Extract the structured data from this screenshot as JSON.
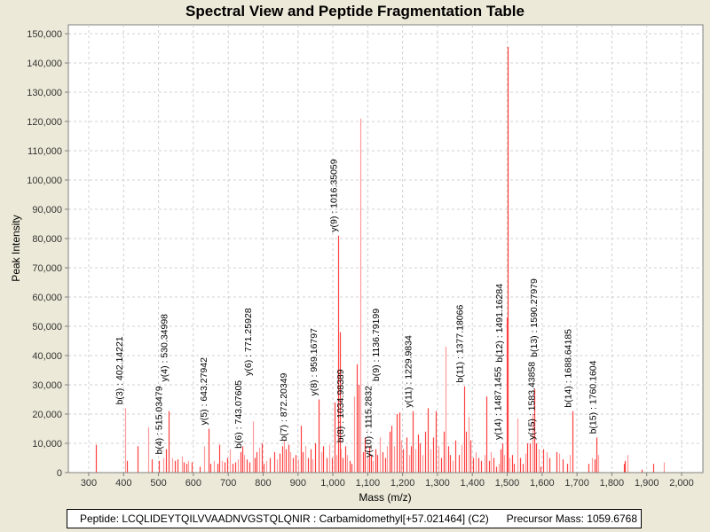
{
  "chart_data": {
    "type": "bar",
    "title": "Spectral View and Peptide Fragmentation Table",
    "xlabel": "Mass (m/z)",
    "ylabel": "Peak Intensity",
    "xlim": [
      250,
      2060
    ],
    "ylim": [
      0,
      152000
    ],
    "grid": true,
    "x_ticks": [
      "300",
      "400",
      "500",
      "600",
      "700",
      "800",
      "900",
      "1,000",
      "1,100",
      "1,200",
      "1,300",
      "1,400",
      "1,500",
      "1,600",
      "1,700",
      "1,800",
      "1,900",
      "2,000"
    ],
    "x_tick_values": [
      300,
      400,
      500,
      600,
      700,
      800,
      900,
      1000,
      1100,
      1200,
      1300,
      1400,
      1500,
      1600,
      1700,
      1800,
      1900,
      2000
    ],
    "y_ticks": [
      "0",
      "10,000",
      "20,000",
      "30,000",
      "40,000",
      "50,000",
      "60,000",
      "70,000",
      "80,000",
      "90,000",
      "100,000",
      "110,000",
      "120,000",
      "130,000",
      "140,000",
      "150,000"
    ],
    "y_tick_values": [
      0,
      10000,
      20000,
      30000,
      40000,
      50000,
      60000,
      70000,
      80000,
      90000,
      100000,
      110000,
      120000,
      130000,
      140000,
      150000
    ],
    "peaks": [
      [
        320,
        9500
      ],
      [
        404,
        22000
      ],
      [
        410,
        4000
      ],
      [
        440,
        9000
      ],
      [
        470,
        15500
      ],
      [
        480,
        4500
      ],
      [
        502,
        4000
      ],
      [
        515,
        5000
      ],
      [
        522,
        8000
      ],
      [
        530,
        21000
      ],
      [
        540,
        5000
      ],
      [
        548,
        4000
      ],
      [
        555,
        4500
      ],
      [
        566,
        5500
      ],
      [
        572,
        3500
      ],
      [
        580,
        3000
      ],
      [
        585,
        4000
      ],
      [
        594,
        3500
      ],
      [
        617,
        2000
      ],
      [
        631,
        9000
      ],
      [
        643,
        15000
      ],
      [
        649,
        3000
      ],
      [
        660,
        4000
      ],
      [
        670,
        3000
      ],
      [
        675,
        9500
      ],
      [
        681,
        4000
      ],
      [
        690,
        3500
      ],
      [
        696,
        5000
      ],
      [
        705,
        8000
      ],
      [
        713,
        3000
      ],
      [
        720,
        3500
      ],
      [
        728,
        4500
      ],
      [
        735,
        7000
      ],
      [
        741,
        9000
      ],
      [
        746,
        6000
      ],
      [
        752,
        4500
      ],
      [
        760,
        3500
      ],
      [
        771,
        17500
      ],
      [
        776,
        5000
      ],
      [
        782,
        7000
      ],
      [
        788,
        8500
      ],
      [
        795,
        10000
      ],
      [
        802,
        3000
      ],
      [
        810,
        4000
      ],
      [
        820,
        5000
      ],
      [
        832,
        7000
      ],
      [
        840,
        4500
      ],
      [
        848,
        6500
      ],
      [
        856,
        9000
      ],
      [
        860,
        11000
      ],
      [
        866,
        8000
      ],
      [
        872,
        9500
      ],
      [
        878,
        7000
      ],
      [
        885,
        5000
      ],
      [
        892,
        6000
      ],
      [
        900,
        4500
      ],
      [
        908,
        16000
      ],
      [
        914,
        7000
      ],
      [
        920,
        9000
      ],
      [
        928,
        5000
      ],
      [
        935,
        8000
      ],
      [
        942,
        4500
      ],
      [
        950,
        10000
      ],
      [
        959,
        25000
      ],
      [
        966,
        7000
      ],
      [
        973,
        9000
      ],
      [
        982,
        5000
      ],
      [
        990,
        9500
      ],
      [
        998,
        5000
      ],
      [
        1004,
        24000
      ],
      [
        1010,
        6000
      ],
      [
        1016,
        81000
      ],
      [
        1020,
        48000
      ],
      [
        1024,
        8000
      ],
      [
        1029,
        5000
      ],
      [
        1035,
        9000
      ],
      [
        1041,
        6000
      ],
      [
        1047,
        4000
      ],
      [
        1054,
        3000
      ],
      [
        1062,
        26000
      ],
      [
        1068,
        37000
      ],
      [
        1074,
        30000
      ],
      [
        1080,
        121000
      ],
      [
        1086,
        7000
      ],
      [
        1092,
        12000
      ],
      [
        1098,
        5000
      ],
      [
        1104,
        9000
      ],
      [
        1110,
        6000
      ],
      [
        1115,
        4000
      ],
      [
        1121,
        8000
      ],
      [
        1128,
        6000
      ],
      [
        1136,
        12000
      ],
      [
        1142,
        7000
      ],
      [
        1149,
        5000
      ],
      [
        1155,
        9000
      ],
      [
        1162,
        14000
      ],
      [
        1168,
        16000
      ],
      [
        1176,
        9000
      ],
      [
        1184,
        20000
      ],
      [
        1190,
        20500
      ],
      [
        1196,
        11000
      ],
      [
        1202,
        8000
      ],
      [
        1210,
        12000
      ],
      [
        1218,
        6000
      ],
      [
        1224,
        9000
      ],
      [
        1230,
        21000
      ],
      [
        1236,
        8000
      ],
      [
        1243,
        13000
      ],
      [
        1250,
        10000
      ],
      [
        1258,
        6000
      ],
      [
        1265,
        14000
      ],
      [
        1272,
        22000
      ],
      [
        1280,
        8000
      ],
      [
        1288,
        12000
      ],
      [
        1296,
        21000
      ],
      [
        1302,
        9000
      ],
      [
        1310,
        5000
      ],
      [
        1318,
        14000
      ],
      [
        1324,
        43000
      ],
      [
        1330,
        9000
      ],
      [
        1336,
        6000
      ],
      [
        1344,
        4000
      ],
      [
        1352,
        11000
      ],
      [
        1360,
        6000
      ],
      [
        1368,
        9500
      ],
      [
        1377,
        29500
      ],
      [
        1382,
        14000
      ],
      [
        1388,
        19000
      ],
      [
        1394,
        11000
      ],
      [
        1402,
        5000
      ],
      [
        1410,
        7000
      ],
      [
        1418,
        5000
      ],
      [
        1426,
        4000
      ],
      [
        1434,
        6000
      ],
      [
        1441,
        26000
      ],
      [
        1447,
        4000
      ],
      [
        1453,
        7000
      ],
      [
        1460,
        5000
      ],
      [
        1468,
        2000
      ],
      [
        1476,
        3000
      ],
      [
        1482,
        8000
      ],
      [
        1487,
        10000
      ],
      [
        1492,
        6000
      ],
      [
        1498,
        53000
      ],
      [
        1500,
        145500
      ],
      [
        1507,
        5000
      ],
      [
        1514,
        6000
      ],
      [
        1520,
        3000
      ],
      [
        1528,
        18500
      ],
      [
        1536,
        5000
      ],
      [
        1545,
        3000
      ],
      [
        1552,
        6500
      ],
      [
        1558,
        10000
      ],
      [
        1564,
        10000
      ],
      [
        1572,
        20000
      ],
      [
        1578,
        28500
      ],
      [
        1582,
        10000
      ],
      [
        1590,
        8000
      ],
      [
        1596,
        2000
      ],
      [
        1604,
        8000
      ],
      [
        1612,
        7000
      ],
      [
        1620,
        5000
      ],
      [
        1640,
        7000
      ],
      [
        1650,
        6500
      ],
      [
        1660,
        4500
      ],
      [
        1672,
        3000
      ],
      [
        1680,
        6000
      ],
      [
        1688,
        21000
      ],
      [
        1734,
        3000
      ],
      [
        1742,
        5000
      ],
      [
        1750,
        4500
      ],
      [
        1755,
        12000
      ],
      [
        1760,
        6000
      ],
      [
        1834,
        3000
      ],
      [
        1836,
        4000
      ],
      [
        1844,
        6000
      ],
      [
        1886,
        1000
      ],
      [
        1918,
        3000
      ],
      [
        1948,
        3500
      ]
    ],
    "annotations": [
      {
        "label": "b(3) : 402.14221",
        "mz": 402.14221,
        "intensity": 22000,
        "type": "b"
      },
      {
        "label": "b(4) : 515.03479",
        "mz": 515.03479,
        "intensity": 5000,
        "type": "b"
      },
      {
        "label": "y(4) : 530.34998",
        "mz": 530.34998,
        "intensity": 21000,
        "type": "y"
      },
      {
        "label": "y(5) : 643.27942",
        "mz": 643.27942,
        "intensity": 15000,
        "type": "y"
      },
      {
        "label": "b(6) : 743.07605",
        "mz": 743.07605,
        "intensity": 7000,
        "type": "b"
      },
      {
        "label": "y(6) : 771.25928",
        "mz": 771.25928,
        "intensity": 17500,
        "type": "y"
      },
      {
        "label": "b(7) : 872.20349",
        "mz": 872.20349,
        "intensity": 9500,
        "type": "b"
      },
      {
        "label": "y(8) : 959.16797",
        "mz": 959.16797,
        "intensity": 25000,
        "type": "y"
      },
      {
        "label": "y(9) : 1016.35059",
        "mz": 1016.35059,
        "intensity": 81000,
        "type": "y"
      },
      {
        "label": "b(8) : 1034.98389",
        "mz": 1034.98389,
        "intensity": 9000,
        "type": "b"
      },
      {
        "label": "y(10) : 1115.2832",
        "mz": 1115.2832,
        "intensity": 4000,
        "type": "y"
      },
      {
        "label": "b(9) : 1136.79199",
        "mz": 1136.79199,
        "intensity": 12000,
        "type": "b"
      },
      {
        "label": "y(11) : 1229.9834",
        "mz": 1229.9834,
        "intensity": 21000,
        "type": "y"
      },
      {
        "label": "b(11) : 1377.18066",
        "mz": 1377.18066,
        "intensity": 29500,
        "type": "b"
      },
      {
        "label": "y(14) : 1487.1455",
        "mz": 1487.1455,
        "intensity": 10000,
        "type": "y"
      },
      {
        "label": "b(12) : 1491.16284",
        "mz": 1491.16284,
        "intensity": 24000,
        "type": "b"
      },
      {
        "label": "y(15) : 1583.43858",
        "mz": 1583.43858,
        "intensity": 10000,
        "type": "y"
      },
      {
        "label": "b(13) : 1590.27979",
        "mz": 1590.27979,
        "intensity": 28500,
        "type": "b"
      },
      {
        "label": "b(14) : 1688.64185",
        "mz": 1688.64185,
        "intensity": 21000,
        "type": "b"
      },
      {
        "label": "b(15) : 1760.1604",
        "mz": 1760.1604,
        "intensity": 12000,
        "type": "b"
      }
    ],
    "colors": {
      "peak": "#ff4040",
      "peak_light": "#ff9a9a",
      "grid": "#d0d0d0",
      "background": "#ece9d8",
      "plot": "#ffffff"
    }
  },
  "footer": {
    "peptide": "Peptide: LCQLIDEYTQILVVAADNVGSTQLQNIR : Carbamidomethyl[+57.021464] (C2)",
    "precursor": "Precursor Mass: 1059.6768"
  }
}
